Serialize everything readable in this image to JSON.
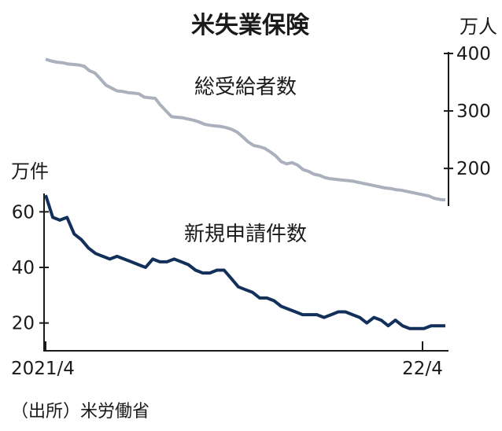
{
  "title": "米失業保険",
  "source": "（出所）米労働省",
  "colors": {
    "claimants": "#aab1bd",
    "initial": "#12305a",
    "axis": "#1a1a1a"
  },
  "chart_data": [
    {
      "type": "line",
      "series_label": "総受給者数",
      "unit": "万人",
      "axis_side": "right",
      "ylim": [
        140,
        400
      ],
      "yticks": [
        200,
        300,
        400
      ],
      "ytick_labels": [
        "200",
        "300",
        "400"
      ],
      "x_start": "2021/4",
      "x_end_label": "22/4",
      "values": [
        390,
        387,
        385,
        384,
        382,
        381,
        380,
        378,
        370,
        366,
        356,
        345,
        340,
        335,
        334,
        332,
        331,
        330,
        324,
        323,
        322,
        310,
        300,
        290,
        289,
        288,
        286,
        284,
        281,
        277,
        275,
        274,
        273,
        271,
        268,
        263,
        255,
        246,
        240,
        238,
        235,
        229,
        222,
        212,
        208,
        210,
        206,
        198,
        195,
        190,
        188,
        184,
        182,
        181,
        180,
        179,
        178,
        176,
        174,
        172,
        170,
        168,
        166,
        165,
        163,
        162,
        160,
        158,
        156,
        154,
        152,
        148,
        146,
        145
      ]
    },
    {
      "type": "line",
      "series_label": "新規申請件数",
      "unit": "万件",
      "axis_side": "left",
      "ylim": [
        10,
        70
      ],
      "yticks": [
        20,
        40,
        60
      ],
      "ytick_labels": [
        "20",
        "40",
        "60"
      ],
      "x_start": "2021/4",
      "x_end_label": "22/4",
      "values": [
        66,
        58,
        57,
        58,
        52,
        50,
        47,
        45,
        44,
        43,
        44,
        43,
        42,
        41,
        40,
        43,
        42,
        42,
        43,
        42,
        41,
        39,
        38,
        38,
        39,
        39,
        36,
        33,
        32,
        31,
        29,
        29,
        28,
        26,
        25,
        24,
        23,
        23,
        23,
        22,
        23,
        24,
        24,
        23,
        22,
        20,
        22,
        21,
        19,
        21,
        19,
        18,
        18,
        18,
        19,
        19,
        19
      ]
    }
  ]
}
